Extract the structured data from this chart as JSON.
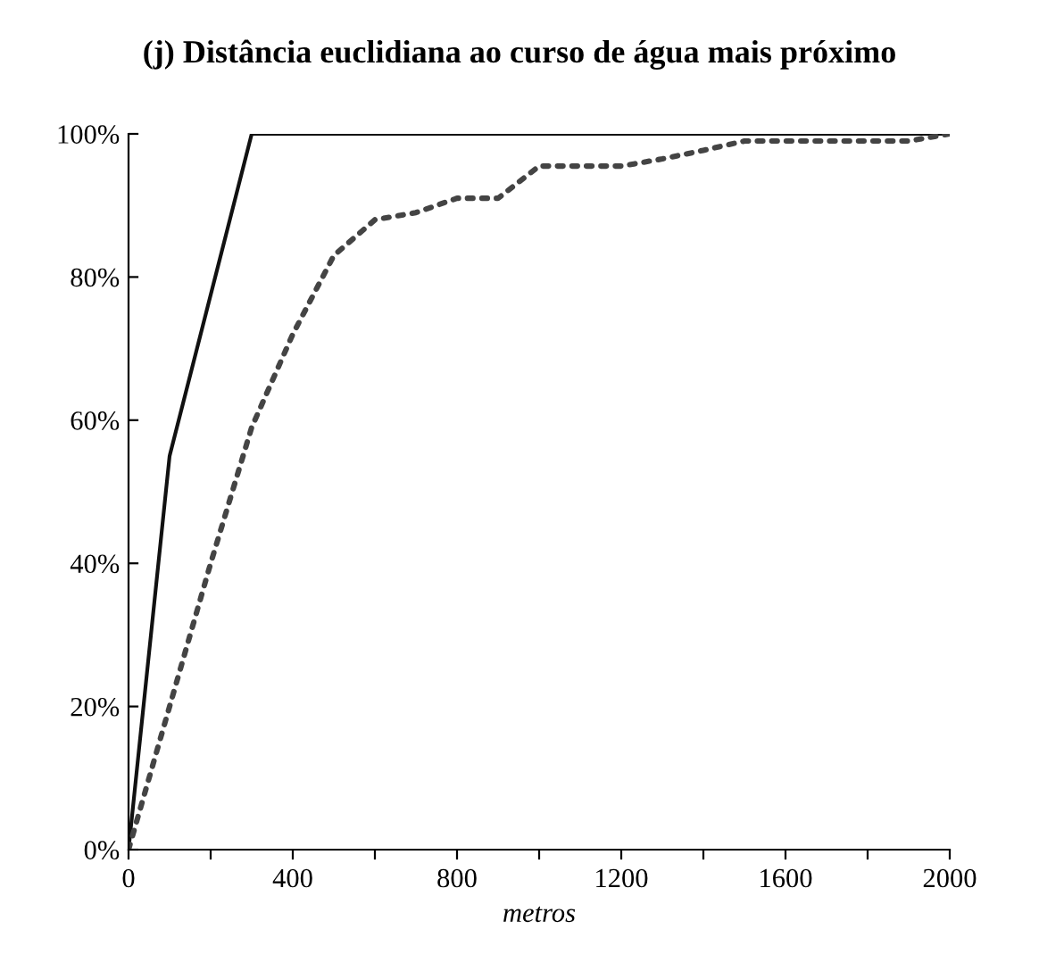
{
  "chart_data": {
    "type": "line",
    "title": "(j) Distância euclidiana ao curso de água mais próximo",
    "xlabel": "metros",
    "series": [
      {
        "color": "#111111",
        "line_style": "solid",
        "x": [
          0,
          100,
          300,
          2000
        ],
        "values": [
          0,
          55,
          100,
          100
        ]
      },
      {
        "color": "#444444",
        "line_style": "dotted",
        "x": [
          0,
          100,
          200,
          300,
          400,
          500,
          600,
          700,
          800,
          900,
          1000,
          1100,
          1200,
          1300,
          1400,
          1500,
          1600,
          1700,
          1800,
          1900,
          2000
        ],
        "values": [
          0,
          20,
          40,
          59,
          72,
          83,
          88,
          89,
          91,
          91,
          95.5,
          95.5,
          95.5,
          96.5,
          97.7,
          99,
          99,
          99,
          99,
          99,
          100
        ]
      }
    ],
    "xlim": [
      0,
      2000
    ],
    "xticks": [
      0,
      {
        "value": 200,
        "label": null
      },
      400,
      {
        "value": 600,
        "label": null
      },
      800,
      {
        "value": 1000,
        "label": null
      },
      1200,
      {
        "value": 1400,
        "label": null
      },
      1600,
      {
        "value": 1800,
        "label": null
      },
      2000
    ],
    "ylim": [
      0,
      100
    ],
    "yticks": [
      {
        "value": 0,
        "label": "0%"
      },
      {
        "value": 20,
        "label": "20%"
      },
      {
        "value": 40,
        "label": "40%"
      },
      {
        "value": 60,
        "label": "60%"
      },
      {
        "value": 80,
        "label": "80%"
      },
      {
        "value": 100,
        "label": "100%"
      }
    ],
    "grid": false,
    "legend": false
  }
}
